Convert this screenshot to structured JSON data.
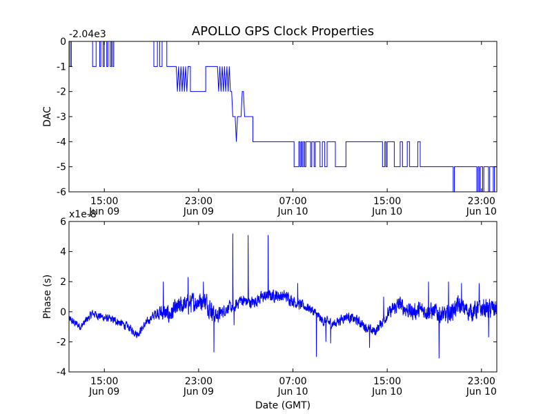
{
  "chart_data": [
    {
      "type": "line",
      "title": "APOLLO GPS Clock Properties",
      "ylabel": "DAC",
      "offset_label": "-2.04e3",
      "xlabel": "",
      "ylim": [
        -6,
        0
      ],
      "yticks": [
        "0",
        "-1",
        "-2",
        "-3",
        "-4",
        "-5",
        "-6"
      ],
      "xlim_hours": [
        12.0,
        48.3
      ],
      "xticks": [
        {
          "hour": 15,
          "time": "15:00",
          "date": "Jun 09"
        },
        {
          "hour": 23,
          "time": "23:00",
          "date": "Jun 09"
        },
        {
          "hour": 31,
          "time": "07:00",
          "date": "Jun 10"
        },
        {
          "hour": 39,
          "time": "15:00",
          "date": "Jun 10"
        },
        {
          "hour": 47,
          "time": "23:00",
          "date": "Jun 10"
        }
      ],
      "color": "#0000ff",
      "series": [
        {
          "name": "DAC",
          "points": [
            [
              12.0,
              0
            ],
            [
              12.1,
              0
            ],
            [
              12.1,
              -1
            ],
            [
              12.2,
              -1
            ],
            [
              12.2,
              0
            ],
            [
              14.0,
              0
            ],
            [
              14.0,
              -1
            ],
            [
              14.3,
              -1
            ],
            [
              14.3,
              0
            ],
            [
              14.6,
              0
            ],
            [
              14.6,
              -1
            ],
            [
              14.7,
              -1
            ],
            [
              14.7,
              0
            ],
            [
              14.9,
              0
            ],
            [
              14.9,
              -1
            ],
            [
              15.0,
              -1
            ],
            [
              15.0,
              0
            ],
            [
              15.2,
              0
            ],
            [
              15.2,
              -1
            ],
            [
              15.3,
              -1
            ],
            [
              15.3,
              0
            ],
            [
              15.5,
              0
            ],
            [
              15.5,
              -1
            ],
            [
              15.6,
              -1
            ],
            [
              15.6,
              0
            ],
            [
              15.7,
              0
            ],
            [
              15.7,
              -1
            ],
            [
              15.8,
              -1
            ],
            [
              15.8,
              0
            ],
            [
              19.2,
              0
            ],
            [
              19.2,
              -1
            ],
            [
              19.5,
              -1
            ],
            [
              19.5,
              0
            ],
            [
              19.7,
              0
            ],
            [
              19.7,
              -1
            ],
            [
              19.9,
              -1
            ],
            [
              19.9,
              0
            ],
            [
              20.3,
              0
            ],
            [
              20.3,
              -1
            ],
            [
              21.1,
              -1
            ],
            [
              21.2,
              -2
            ],
            [
              21.3,
              -1
            ],
            [
              21.4,
              -2
            ],
            [
              21.5,
              -1
            ],
            [
              21.6,
              -2
            ],
            [
              21.7,
              -1
            ],
            [
              21.8,
              -2
            ],
            [
              21.9,
              -1
            ],
            [
              22.0,
              -2
            ],
            [
              22.1,
              -1
            ],
            [
              22.3,
              -1
            ],
            [
              22.3,
              -2
            ],
            [
              23.6,
              -2
            ],
            [
              23.6,
              -1
            ],
            [
              24.6,
              -1
            ],
            [
              24.7,
              -2
            ],
            [
              24.8,
              -1
            ],
            [
              24.9,
              -2
            ],
            [
              25.0,
              -1
            ],
            [
              25.1,
              -2
            ],
            [
              25.2,
              -1
            ],
            [
              25.3,
              -2
            ],
            [
              25.4,
              -1
            ],
            [
              25.5,
              -2
            ],
            [
              25.6,
              -1
            ],
            [
              25.7,
              -2
            ],
            [
              25.8,
              -2
            ],
            [
              25.9,
              -3
            ],
            [
              26.1,
              -3
            ],
            [
              26.2,
              -4
            ],
            [
              26.3,
              -3
            ],
            [
              26.6,
              -3
            ],
            [
              26.7,
              -2
            ],
            [
              26.8,
              -2
            ],
            [
              26.9,
              -3
            ],
            [
              27.6,
              -3
            ],
            [
              27.6,
              -4
            ],
            [
              31.1,
              -4
            ],
            [
              31.1,
              -5
            ],
            [
              31.5,
              -5
            ],
            [
              31.5,
              -4
            ],
            [
              31.6,
              -4
            ],
            [
              31.6,
              -5
            ],
            [
              31.7,
              -5
            ],
            [
              31.7,
              -4
            ],
            [
              31.8,
              -4
            ],
            [
              31.8,
              -5
            ],
            [
              31.9,
              -5
            ],
            [
              31.9,
              -4
            ],
            [
              32.0,
              -4
            ],
            [
              32.0,
              -5
            ],
            [
              32.1,
              -5
            ],
            [
              32.1,
              -4
            ],
            [
              32.5,
              -4
            ],
            [
              32.5,
              -5
            ],
            [
              32.6,
              -5
            ],
            [
              32.6,
              -4
            ],
            [
              32.8,
              -4
            ],
            [
              32.8,
              -5
            ],
            [
              32.9,
              -5
            ],
            [
              32.9,
              -4
            ],
            [
              33.3,
              -4
            ],
            [
              33.3,
              -5
            ],
            [
              33.5,
              -5
            ],
            [
              33.5,
              -4
            ],
            [
              33.7,
              -4
            ],
            [
              33.7,
              -5
            ],
            [
              33.9,
              -5
            ],
            [
              33.9,
              -4
            ],
            [
              34.6,
              -4
            ],
            [
              34.6,
              -5
            ],
            [
              35.5,
              -5
            ],
            [
              35.5,
              -4
            ],
            [
              38.6,
              -4
            ],
            [
              38.6,
              -5
            ],
            [
              38.8,
              -5
            ],
            [
              38.8,
              -4
            ],
            [
              38.9,
              -4
            ],
            [
              38.9,
              -5
            ],
            [
              39.0,
              -5
            ],
            [
              39.0,
              -4
            ],
            [
              39.6,
              -4
            ],
            [
              39.6,
              -5
            ],
            [
              40.1,
              -5
            ],
            [
              40.1,
              -4
            ],
            [
              40.3,
              -4
            ],
            [
              40.3,
              -5
            ],
            [
              40.7,
              -5
            ],
            [
              40.7,
              -4
            ],
            [
              40.9,
              -4
            ],
            [
              40.9,
              -5
            ],
            [
              41.6,
              -5
            ],
            [
              41.6,
              -4
            ],
            [
              41.8,
              -4
            ],
            [
              41.8,
              -5
            ],
            [
              44.6,
              -5
            ],
            [
              44.6,
              -6
            ],
            [
              44.7,
              -6
            ],
            [
              44.7,
              -5
            ],
            [
              46.6,
              -5
            ],
            [
              46.6,
              -6
            ],
            [
              46.7,
              -6
            ],
            [
              46.7,
              -5
            ],
            [
              46.8,
              -5
            ],
            [
              46.8,
              -6
            ],
            [
              46.9,
              -6
            ],
            [
              46.9,
              -5
            ],
            [
              47.1,
              -5
            ],
            [
              47.1,
              -6
            ],
            [
              47.2,
              -6
            ],
            [
              47.2,
              -5
            ],
            [
              47.6,
              -5
            ],
            [
              47.6,
              -6
            ],
            [
              47.7,
              -6
            ],
            [
              47.7,
              -5
            ],
            [
              48.0,
              -5
            ],
            [
              48.0,
              -6
            ],
            [
              48.1,
              -6
            ],
            [
              48.1,
              -5
            ],
            [
              48.3,
              -5
            ]
          ]
        }
      ]
    },
    {
      "type": "line",
      "title": "",
      "ylabel": "Phase (s)",
      "offset_label": "x1e-8",
      "xlabel": "Date (GMT)",
      "ylim": [
        -4,
        6
      ],
      "yticks": [
        "6",
        "4",
        "2",
        "0",
        "-2",
        "-4"
      ],
      "xlim_hours": [
        12.0,
        48.3
      ],
      "xticks": [
        {
          "hour": 15,
          "time": "15:00",
          "date": "Jun 09"
        },
        {
          "hour": 23,
          "time": "23:00",
          "date": "Jun 09"
        },
        {
          "hour": 31,
          "time": "07:00",
          "date": "Jun 10"
        },
        {
          "hour": 39,
          "time": "15:00",
          "date": "Jun 10"
        },
        {
          "hour": 47,
          "time": "23:00",
          "date": "Jun 10"
        }
      ],
      "color": "#0000ff",
      "series": [
        {
          "name": "Phase",
          "baseline_points": [
            [
              12.0,
              -0.5
            ],
            [
              13.0,
              -1.0
            ],
            [
              14.0,
              -0.1
            ],
            [
              15.0,
              -0.4
            ],
            [
              16.0,
              -0.6
            ],
            [
              17.0,
              -1.0
            ],
            [
              17.8,
              -1.5
            ],
            [
              18.5,
              -0.8
            ],
            [
              19.5,
              0.0
            ],
            [
              20.5,
              -0.2
            ],
            [
              21.5,
              0.4
            ],
            [
              22.5,
              0.6
            ],
            [
              23.5,
              0.8
            ],
            [
              24.5,
              -0.3
            ],
            [
              25.5,
              0.3
            ],
            [
              26.0,
              0.2
            ],
            [
              26.5,
              0.8
            ],
            [
              27.5,
              0.6
            ],
            [
              28.5,
              1.0
            ],
            [
              29.5,
              1.1
            ],
            [
              30.5,
              1.0
            ],
            [
              31.5,
              0.5
            ],
            [
              32.5,
              0.2
            ],
            [
              33.5,
              -0.6
            ],
            [
              34.5,
              -0.8
            ],
            [
              35.5,
              -0.3
            ],
            [
              36.5,
              -0.6
            ],
            [
              37.5,
              -1.2
            ],
            [
              38.0,
              -1.3
            ],
            [
              39.0,
              -0.2
            ],
            [
              40.0,
              0.5
            ],
            [
              41.0,
              0.0
            ],
            [
              42.0,
              0.1
            ],
            [
              43.0,
              0.0
            ],
            [
              44.0,
              -0.3
            ],
            [
              45.0,
              0.4
            ],
            [
              46.0,
              0.0
            ],
            [
              47.0,
              0.2
            ],
            [
              48.3,
              0.2
            ]
          ],
          "noise_bands": [
            [
              12.0,
              0.4
            ],
            [
              19.0,
              0.4
            ],
            [
              20.0,
              0.9
            ],
            [
              24.0,
              1.0
            ],
            [
              25.0,
              0.6
            ],
            [
              27.0,
              0.6
            ],
            [
              31.0,
              0.6
            ],
            [
              32.0,
              0.5
            ],
            [
              38.5,
              0.5
            ],
            [
              40.0,
              0.8
            ],
            [
              48.3,
              1.0
            ]
          ],
          "spikes": [
            [
              20.0,
              2.0
            ],
            [
              22.1,
              2.3
            ],
            [
              23.4,
              2.0
            ],
            [
              24.3,
              -2.7
            ],
            [
              25.9,
              5.2
            ],
            [
              26.0,
              -0.9
            ],
            [
              27.2,
              5.1
            ],
            [
              28.9,
              5.1
            ],
            [
              31.4,
              1.9
            ],
            [
              33.0,
              -3.0
            ],
            [
              33.8,
              -2.0
            ],
            [
              34.2,
              -2.1
            ],
            [
              37.5,
              -2.4
            ],
            [
              38.7,
              1.0
            ],
            [
              42.5,
              2.0
            ],
            [
              43.4,
              -3.1
            ],
            [
              44.2,
              2.0
            ],
            [
              45.3,
              1.9
            ],
            [
              46.8,
              1.9
            ],
            [
              47.6,
              -1.7
            ]
          ]
        }
      ]
    }
  ]
}
